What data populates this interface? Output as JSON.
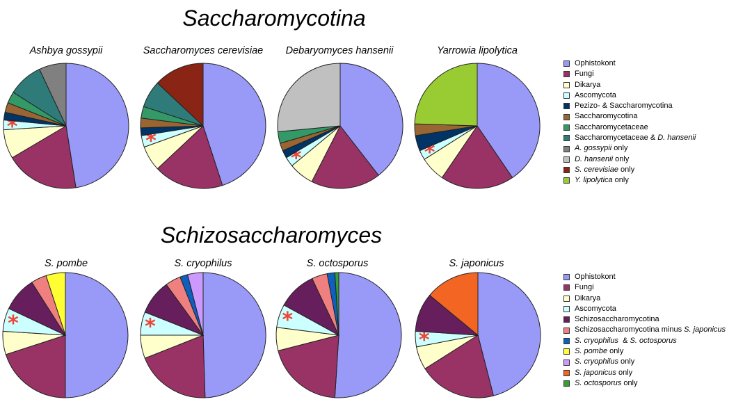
{
  "colors": {
    "ophistokont": "#9999f8",
    "fungi": "#993366",
    "dikarya": "#ffffcc",
    "ascomycota": "#ccffff",
    "pezizo": "#003366",
    "saccharomycotina": "#996633",
    "saccharomycetaceae": "#339966",
    "sacch_dhansenii": "#2f7b79",
    "agossypii_only": "#808080",
    "dhansenii_only": "#c0c0c0",
    "scerevisiae_only": "#8a2414",
    "ylipolytica_only": "#99cc33",
    "schizosaccharomycotina": "#661f5c",
    "schizo_minus_japonicus": "#f08080",
    "cryo_octo": "#0f5fbf",
    "pombe_only": "#ffff33",
    "cryophilus_only": "#cc99ff",
    "japonicus_only": "#f26522",
    "octosporus_only": "#33a033",
    "asterisk": "#ee4433"
  },
  "sections": [
    {
      "title": "Saccharomycotina",
      "legend": [
        {
          "parts": [
            {
              "text": "Ophistokont"
            }
          ],
          "color_key": "ophistokont"
        },
        {
          "parts": [
            {
              "text": "Fungi"
            }
          ],
          "color_key": "fungi"
        },
        {
          "parts": [
            {
              "text": "Dikarya"
            }
          ],
          "color_key": "dikarya"
        },
        {
          "parts": [
            {
              "text": "Ascomycota"
            }
          ],
          "color_key": "ascomycota"
        },
        {
          "parts": [
            {
              "text": "Pezizo- & Saccharomycotina"
            }
          ],
          "color_key": "pezizo"
        },
        {
          "parts": [
            {
              "text": "Saccharomycotina"
            }
          ],
          "color_key": "saccharomycotina"
        },
        {
          "parts": [
            {
              "text": "Saccharomycetaceae"
            }
          ],
          "color_key": "saccharomycetaceae"
        },
        {
          "parts": [
            {
              "text": "Saccharomycetaceae & "
            },
            {
              "text": "D. hansenii",
              "italic": true
            }
          ],
          "color_key": "sacch_dhansenii"
        },
        {
          "parts": [
            {
              "text": "A. gossypii",
              "italic": true
            },
            {
              "text": " only"
            }
          ],
          "color_key": "agossypii_only"
        },
        {
          "parts": [
            {
              "text": "D. hansenii",
              "italic": true
            },
            {
              "text": " only"
            }
          ],
          "color_key": "dhansenii_only"
        },
        {
          "parts": [
            {
              "text": "S. cerevisiae",
              "italic": true
            },
            {
              "text": " only"
            }
          ],
          "color_key": "scerevisiae_only"
        },
        {
          "parts": [
            {
              "text": "Y. lipolytica",
              "italic": true
            },
            {
              "text": " only"
            }
          ],
          "color_key": "ylipolytica_only"
        }
      ]
    },
    {
      "title": "Schizosaccharomyces",
      "legend": [
        {
          "parts": [
            {
              "text": "Ophistokont"
            }
          ],
          "color_key": "ophistokont"
        },
        {
          "parts": [
            {
              "text": "Fungi"
            }
          ],
          "color_key": "fungi"
        },
        {
          "parts": [
            {
              "text": "Dikarya"
            }
          ],
          "color_key": "dikarya"
        },
        {
          "parts": [
            {
              "text": "Ascomycota"
            }
          ],
          "color_key": "ascomycota"
        },
        {
          "parts": [
            {
              "text": "Schizosaccharomycotina"
            }
          ],
          "color_key": "schizosaccharomycotina"
        },
        {
          "parts": [
            {
              "text": "Schizosaccharomycotina minus "
            },
            {
              "text": "S. japonicus",
              "italic": true
            }
          ],
          "color_key": "schizo_minus_japonicus"
        },
        {
          "parts": [
            {
              "text": "S. cryophilus",
              "italic": true
            },
            {
              "text": "  & "
            },
            {
              "text": "S. octosporus",
              "italic": true
            }
          ],
          "color_key": "cryo_octo"
        },
        {
          "parts": [
            {
              "text": "S. pombe",
              "italic": true
            },
            {
              "text": " only"
            }
          ],
          "color_key": "pombe_only"
        },
        {
          "parts": [
            {
              "text": "S. cryophilus",
              "italic": true
            },
            {
              "text": " only"
            }
          ],
          "color_key": "cryophilus_only"
        },
        {
          "parts": [
            {
              "text": "S. japonicus",
              "italic": true
            },
            {
              "text": " only"
            }
          ],
          "color_key": "japonicus_only"
        },
        {
          "parts": [
            {
              "text": "S. octosporus",
              "italic": true
            },
            {
              "text": " only"
            }
          ],
          "color_key": "octosporus_only"
        }
      ]
    }
  ],
  "chart_data": [
    {
      "type": "pie",
      "section": 0,
      "title": "Ashbya gossypii",
      "asterisk_on": "ascomycota",
      "slices": [
        {
          "key": "ophistokont",
          "value": 47.5
        },
        {
          "key": "fungi",
          "value": 19
        },
        {
          "key": "dikarya",
          "value": 7.5
        },
        {
          "key": "ascomycota",
          "value": 2.5
        },
        {
          "key": "pezizo",
          "value": 2
        },
        {
          "key": "saccharomycotina",
          "value": 2.5
        },
        {
          "key": "saccharomycetaceae",
          "value": 3
        },
        {
          "key": "sacch_dhansenii",
          "value": 9
        },
        {
          "key": "agossypii_only",
          "value": 7
        }
      ]
    },
    {
      "type": "pie",
      "section": 0,
      "title": "Saccharomyces cerevisiae",
      "asterisk_on": "ascomycota",
      "slices": [
        {
          "key": "ophistokont",
          "value": 45
        },
        {
          "key": "fungi",
          "value": 18
        },
        {
          "key": "dikarya",
          "value": 6.5
        },
        {
          "key": "ascomycota",
          "value": 3
        },
        {
          "key": "pezizo",
          "value": 2
        },
        {
          "key": "saccharomycotina",
          "value": 2.5
        },
        {
          "key": "saccharomycetaceae",
          "value": 3
        },
        {
          "key": "sacch_dhansenii",
          "value": 7
        },
        {
          "key": "scerevisiae_only",
          "value": 13
        }
      ]
    },
    {
      "type": "pie",
      "section": 0,
      "title": "Debaryomyces hansenii",
      "asterisk_on": "ascomycota",
      "slices": [
        {
          "key": "ophistokont",
          "value": 39.5
        },
        {
          "key": "fungi",
          "value": 18
        },
        {
          "key": "dikarya",
          "value": 6.5
        },
        {
          "key": "ascomycota",
          "value": 2.5
        },
        {
          "key": "pezizo",
          "value": 2
        },
        {
          "key": "saccharomycotina",
          "value": 2
        },
        {
          "key": "saccharomycetaceae",
          "value": 3
        },
        {
          "key": "dhansenii_only",
          "value": 26.5
        }
      ]
    },
    {
      "type": "pie",
      "section": 0,
      "title": "Yarrowia lipolytica",
      "asterisk_on": "ascomycota",
      "slices": [
        {
          "key": "ophistokont",
          "value": 40.5
        },
        {
          "key": "fungi",
          "value": 19
        },
        {
          "key": "dikarya",
          "value": 6.5
        },
        {
          "key": "ascomycota",
          "value": 2.5
        },
        {
          "key": "pezizo",
          "value": 4
        },
        {
          "key": "saccharomycotina",
          "value": 3
        },
        {
          "key": "ylipolytica_only",
          "value": 24.5
        }
      ]
    },
    {
      "type": "pie",
      "section": 1,
      "title": "S. pombe",
      "asterisk_on": "ascomycota",
      "slices": [
        {
          "key": "ophistokont",
          "value": 50
        },
        {
          "key": "fungi",
          "value": 20
        },
        {
          "key": "dikarya",
          "value": 6
        },
        {
          "key": "ascomycota",
          "value": 6
        },
        {
          "key": "schizosaccharomycotina",
          "value": 9
        },
        {
          "key": "schizo_minus_japonicus",
          "value": 4
        },
        {
          "key": "pombe_only",
          "value": 5
        }
      ]
    },
    {
      "type": "pie",
      "section": 1,
      "title": "S. cryophilus",
      "asterisk_on": "ascomycota",
      "slices": [
        {
          "key": "ophistokont",
          "value": 49.5
        },
        {
          "key": "fungi",
          "value": 19.5
        },
        {
          "key": "dikarya",
          "value": 6
        },
        {
          "key": "ascomycota",
          "value": 6
        },
        {
          "key": "schizosaccharomycotina",
          "value": 9
        },
        {
          "key": "schizo_minus_japonicus",
          "value": 4
        },
        {
          "key": "cryo_octo",
          "value": 2
        },
        {
          "key": "cryophilus_only",
          "value": 4
        }
      ]
    },
    {
      "type": "pie",
      "section": 1,
      "title": "S. octosporus",
      "asterisk_on": "ascomycota",
      "slices": [
        {
          "key": "ophistokont",
          "value": 51
        },
        {
          "key": "fungi",
          "value": 20
        },
        {
          "key": "dikarya",
          "value": 6
        },
        {
          "key": "ascomycota",
          "value": 6
        },
        {
          "key": "schizosaccharomycotina",
          "value": 10
        },
        {
          "key": "schizo_minus_japonicus",
          "value": 4
        },
        {
          "key": "cryo_octo",
          "value": 2
        },
        {
          "key": "octosporus_only",
          "value": 1
        }
      ]
    },
    {
      "type": "pie",
      "section": 1,
      "title": "S. japonicus",
      "asterisk_on": "ascomycota",
      "slices": [
        {
          "key": "ophistokont",
          "value": 46
        },
        {
          "key": "fungi",
          "value": 20
        },
        {
          "key": "dikarya",
          "value": 6
        },
        {
          "key": "ascomycota",
          "value": 4
        },
        {
          "key": "schizosaccharomycotina",
          "value": 10
        },
        {
          "key": "japonicus_only",
          "value": 14
        }
      ]
    }
  ]
}
